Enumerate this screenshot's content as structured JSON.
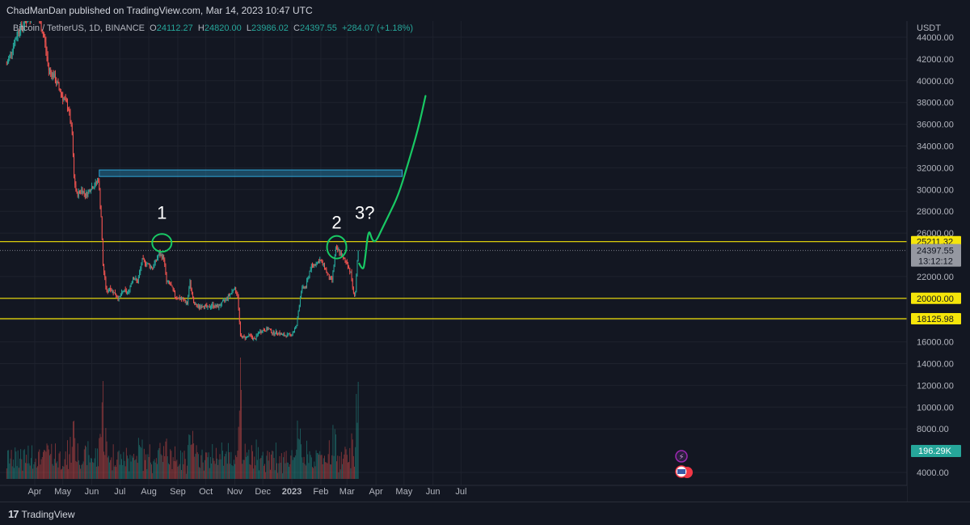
{
  "header": {
    "published_by": "ChadManDan published on TradingView.com, Mar 14, 2023 10:47 UTC",
    "symbol": "Bitcoin / TetherUS, 1D, BINANCE",
    "open_label": "O",
    "open": "24112.27",
    "high_label": "H",
    "high": "24820.00",
    "low_label": "L",
    "low": "23986.02",
    "close_label": "C",
    "close": "24397.55",
    "change": "+284.07 (+1.18%)"
  },
  "footer": {
    "brand": "TradingView"
  },
  "chart_data": {
    "type": "candlestick",
    "currency": "USDT",
    "ylim": [
      3000,
      45500
    ],
    "y_ticks": [
      44000,
      42000,
      40000,
      38000,
      36000,
      34000,
      32000,
      30000,
      28000,
      26000,
      22000,
      20000,
      18000,
      16000,
      14000,
      12000,
      10000,
      8000,
      4000
    ],
    "y_tick_labels": [
      "44000.00",
      "42000.00",
      "40000.00",
      "38000.00",
      "36000.00",
      "34000.00",
      "32000.00",
      "30000.00",
      "28000.00",
      "26000.00",
      "22000.00",
      "20000.00",
      "18000.00",
      "16000.00",
      "14000.00",
      "12000.00",
      "10000.00",
      "8000.00",
      "4000.00"
    ],
    "x_tick_labels": [
      "Apr",
      "May",
      "Jun",
      "Jul",
      "Aug",
      "Sep",
      "Oct",
      "Nov",
      "Dec",
      "2023",
      "Feb",
      "Mar",
      "Apr",
      "May",
      "Jun",
      "Jul"
    ],
    "x_tick_days": [
      0,
      30,
      61,
      91,
      122,
      153,
      183,
      214,
      244,
      275,
      306,
      334,
      365,
      395,
      426,
      456
    ],
    "x_start_date": "2022-04-01",
    "price_path": [
      {
        "day": -30,
        "price": 41500
      },
      {
        "day": -18,
        "price": 44500
      },
      {
        "day": -5,
        "price": 46000
      },
      {
        "day": 0,
        "price": 46500
      },
      {
        "day": 5,
        "price": 45500
      },
      {
        "day": 10,
        "price": 44000
      },
      {
        "day": 15,
        "price": 41000
      },
      {
        "day": 20,
        "price": 40500
      },
      {
        "day": 25,
        "price": 39500
      },
      {
        "day": 30,
        "price": 38500
      },
      {
        "day": 36,
        "price": 37500
      },
      {
        "day": 40,
        "price": 35000
      },
      {
        "day": 42,
        "price": 31000
      },
      {
        "day": 45,
        "price": 29500
      },
      {
        "day": 50,
        "price": 30000
      },
      {
        "day": 55,
        "price": 29500
      },
      {
        "day": 60,
        "price": 30200
      },
      {
        "day": 65,
        "price": 30500
      },
      {
        "day": 68,
        "price": 31000
      },
      {
        "day": 71,
        "price": 27500
      },
      {
        "day": 73,
        "price": 23000
      },
      {
        "day": 77,
        "price": 20500
      },
      {
        "day": 80,
        "price": 21000
      },
      {
        "day": 85,
        "price": 20500
      },
      {
        "day": 90,
        "price": 20000
      },
      {
        "day": 95,
        "price": 20700
      },
      {
        "day": 100,
        "price": 20500
      },
      {
        "day": 105,
        "price": 22000
      },
      {
        "day": 110,
        "price": 21500
      },
      {
        "day": 115,
        "price": 23500
      },
      {
        "day": 120,
        "price": 23200
      },
      {
        "day": 126,
        "price": 22800
      },
      {
        "day": 133,
        "price": 24100
      },
      {
        "day": 138,
        "price": 23700
      },
      {
        "day": 141,
        "price": 21500
      },
      {
        "day": 145,
        "price": 21300
      },
      {
        "day": 150,
        "price": 20200
      },
      {
        "day": 155,
        "price": 20000
      },
      {
        "day": 160,
        "price": 19800
      },
      {
        "day": 163,
        "price": 19500
      },
      {
        "day": 166,
        "price": 21500
      },
      {
        "day": 170,
        "price": 19500
      },
      {
        "day": 175,
        "price": 19200
      },
      {
        "day": 180,
        "price": 19400
      },
      {
        "day": 185,
        "price": 19100
      },
      {
        "day": 190,
        "price": 19400
      },
      {
        "day": 195,
        "price": 19200
      },
      {
        "day": 200,
        "price": 19500
      },
      {
        "day": 205,
        "price": 20000
      },
      {
        "day": 210,
        "price": 20500
      },
      {
        "day": 213,
        "price": 21000
      },
      {
        "day": 217,
        "price": 20300
      },
      {
        "day": 220,
        "price": 16500
      },
      {
        "day": 225,
        "price": 16400
      },
      {
        "day": 230,
        "price": 16600
      },
      {
        "day": 235,
        "price": 16200
      },
      {
        "day": 240,
        "price": 16900
      },
      {
        "day": 245,
        "price": 17100
      },
      {
        "day": 250,
        "price": 17200
      },
      {
        "day": 255,
        "price": 16800
      },
      {
        "day": 260,
        "price": 16900
      },
      {
        "day": 265,
        "price": 16600
      },
      {
        "day": 270,
        "price": 16600
      },
      {
        "day": 275,
        "price": 16700
      },
      {
        "day": 280,
        "price": 17500
      },
      {
        "day": 285,
        "price": 20800
      },
      {
        "day": 290,
        "price": 21100
      },
      {
        "day": 295,
        "price": 22800
      },
      {
        "day": 300,
        "price": 23200
      },
      {
        "day": 305,
        "price": 23500
      },
      {
        "day": 310,
        "price": 22900
      },
      {
        "day": 315,
        "price": 21800
      },
      {
        "day": 318,
        "price": 21700
      },
      {
        "day": 322,
        "price": 24500
      },
      {
        "day": 326,
        "price": 24300
      },
      {
        "day": 330,
        "price": 23600
      },
      {
        "day": 334,
        "price": 23300
      },
      {
        "day": 338,
        "price": 22300
      },
      {
        "day": 341,
        "price": 20400
      },
      {
        "day": 343,
        "price": 20600
      },
      {
        "day": 344,
        "price": 22100
      },
      {
        "day": 346,
        "price": 24397
      }
    ],
    "levels": [
      {
        "price": 25211.32,
        "label": "25211.32",
        "color": "#f5e50a"
      },
      {
        "price": 20000.0,
        "label": "20000.00",
        "color": "#f5e50a"
      },
      {
        "price": 18125.98,
        "label": "18125.98",
        "color": "#f5e50a"
      }
    ],
    "current_price": {
      "price": 24397.55,
      "label": "24397.55",
      "countdown": "13:12:12"
    },
    "volume_label": "196.29K",
    "resistance_zone": {
      "from_price": 31200,
      "to_price": 31800,
      "from_day": 69,
      "to_day": 393,
      "color": "#2ea6d9"
    },
    "annotations": [
      {
        "text": "1",
        "day": 136,
        "price": 27300
      },
      {
        "text": "2",
        "day": 323,
        "price": 26400
      },
      {
        "text": "3?",
        "day": 353,
        "price": 27300
      }
    ],
    "projection": [
      {
        "day": 347,
        "price": 23200
      },
      {
        "day": 351,
        "price": 22500
      },
      {
        "day": 353,
        "price": 23300
      },
      {
        "day": 357,
        "price": 26500
      },
      {
        "day": 361,
        "price": 25300
      },
      {
        "day": 365,
        "price": 25200
      },
      {
        "day": 371,
        "price": 26300
      },
      {
        "day": 379,
        "price": 27700
      },
      {
        "day": 389,
        "price": 29500
      },
      {
        "day": 398,
        "price": 32000
      },
      {
        "day": 410,
        "price": 35500
      },
      {
        "day": 418,
        "price": 38600
      }
    ],
    "colors": {
      "up": "#26a69a",
      "down": "#ef5350",
      "bg": "#131722",
      "grid": "#1e222d",
      "projection": "#18c964",
      "circle": "#18c964"
    }
  }
}
